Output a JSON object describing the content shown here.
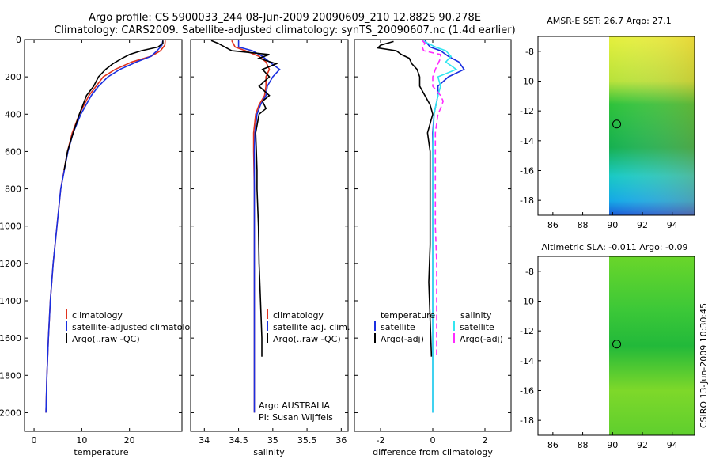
{
  "title_line1": "Argo profile: CS 5900033_244 08-Jun-2009 20090609_210 12.882S 90.278E",
  "title_line2": "Climatology: CARS2009. Satellite-adjusted climatology: synTS_20090607.nc (1.4d earlier)",
  "colors": {
    "clim": "#e0321e",
    "sat": "#1a2fe0",
    "argo": "#000000",
    "sal_diff": "#ff2bff",
    "sal_sat": "#33e6f0"
  },
  "chart_data": [
    {
      "type": "line",
      "name": "temperature-panel",
      "xlabel": "temperature",
      "ylabel": "",
      "xlim": [
        -2,
        31
      ],
      "ylim": [
        2100,
        0
      ],
      "x_ticks": [
        0,
        10,
        20
      ],
      "y_ticks": [
        0,
        200,
        400,
        600,
        800,
        1000,
        1200,
        1400,
        1600,
        1800,
        2000
      ],
      "legend": [
        "climatology",
        "satellite-adjusted climatology",
        "Argo(..raw -QC)"
      ],
      "series": [
        {
          "name": "climatology",
          "color": "clim",
          "depth": [
            5,
            30,
            60,
            90,
            120,
            160,
            200,
            250,
            300,
            400,
            500,
            600,
            800,
            1000,
            1200,
            1400,
            1600,
            1800,
            2000
          ],
          "values": [
            27.5,
            27.4,
            26.5,
            24.5,
            20.5,
            17,
            14.5,
            13,
            11.5,
            9.5,
            8,
            7,
            5.6,
            4.8,
            4.0,
            3.4,
            3.0,
            2.7,
            2.5
          ]
        },
        {
          "name": "satellite-adjusted climatology",
          "color": "sat",
          "depth": [
            5,
            30,
            60,
            90,
            120,
            160,
            200,
            250,
            300,
            400,
            500,
            600,
            800,
            1000,
            1200,
            1400,
            1600,
            1800,
            2000
          ],
          "values": [
            27.0,
            26.8,
            25.8,
            24.5,
            21.5,
            18,
            15.5,
            13.5,
            12,
            9.8,
            8.2,
            7.1,
            5.6,
            4.8,
            4.0,
            3.4,
            3.0,
            2.7,
            2.5
          ]
        },
        {
          "name": "Argo(..raw -QC)",
          "color": "argo",
          "depth": [
            5,
            20,
            40,
            60,
            80,
            100,
            130,
            160,
            200,
            250,
            300,
            400,
            500,
            600,
            700
          ],
          "values": [
            27.0,
            27.0,
            26.0,
            22.5,
            20.0,
            18.5,
            16.5,
            15.0,
            13.5,
            12.5,
            11.0,
            9.5,
            8.2,
            7.0,
            6.3
          ]
        }
      ]
    },
    {
      "type": "line",
      "name": "salinity-panel",
      "xlabel": "salinity",
      "ylabel": "",
      "xlim": [
        33.8,
        36.1
      ],
      "ylim": [
        2100,
        0
      ],
      "x_ticks": [
        34,
        34.5,
        35,
        35.5,
        36
      ],
      "legend": [
        "climatology",
        "satellite adj. clim.",
        "Argo(..raw -QC)"
      ],
      "annotations": [
        "Argo AUSTRALIA",
        "PI: Susan Wijffels"
      ],
      "series": [
        {
          "name": "climatology",
          "color": "clim",
          "depth": [
            5,
            40,
            60,
            90,
            120,
            160,
            200,
            250,
            300,
            350,
            400,
            500,
            600,
            800,
            1000,
            1200,
            1400,
            1600,
            1800,
            2000
          ],
          "values": [
            34.4,
            34.45,
            34.6,
            34.8,
            34.9,
            34.95,
            34.9,
            34.9,
            34.88,
            34.8,
            34.75,
            34.72,
            34.72,
            34.73,
            34.73,
            34.73,
            34.73,
            34.73,
            34.73,
            34.73
          ]
        },
        {
          "name": "satellite adj. clim.",
          "color": "sat",
          "depth": [
            5,
            40,
            60,
            90,
            120,
            160,
            200,
            250,
            300,
            350,
            400,
            500,
            600,
            800,
            1000,
            1200,
            1400,
            1600,
            1800,
            2000
          ],
          "values": [
            34.5,
            34.5,
            34.7,
            34.85,
            34.95,
            35.1,
            35.0,
            34.92,
            34.9,
            34.82,
            34.77,
            34.74,
            34.73,
            34.73,
            34.73,
            34.73,
            34.73,
            34.73,
            34.73,
            34.73
          ]
        },
        {
          "name": "Argo(..raw -QC)",
          "color": "argo",
          "depth": [
            5,
            20,
            40,
            60,
            80,
            100,
            130,
            160,
            200,
            250,
            300,
            330,
            370,
            400,
            500,
            600,
            700,
            800,
            1000,
            1200,
            1400,
            1600,
            1700
          ],
          "values": [
            34.1,
            34.2,
            34.3,
            34.4,
            34.95,
            34.8,
            35.05,
            34.85,
            34.95,
            34.8,
            34.95,
            34.85,
            34.9,
            34.8,
            34.75,
            34.76,
            34.77,
            34.77,
            34.79,
            34.8,
            34.82,
            34.84,
            34.84
          ]
        }
      ]
    },
    {
      "type": "line",
      "name": "difference-panel",
      "xlabel": "difference from climatology",
      "ylabel": "",
      "xlim": [
        -3,
        3
      ],
      "ylim": [
        2100,
        0
      ],
      "x_ticks": [
        -2,
        0,
        2
      ],
      "legend": [
        "temperature",
        "satellite",
        "Argo(-adj)",
        "salinity",
        "satellite",
        "Argo(-adj)"
      ],
      "series": [
        {
          "name": "temperature satellite",
          "color": "sat",
          "depth": [
            5,
            40,
            60,
            90,
            120,
            160,
            200,
            250,
            300,
            400,
            500,
            700,
            1000,
            1500,
            2000
          ],
          "values": [
            -0.3,
            -0.1,
            0.3,
            0.6,
            1.0,
            1.2,
            0.6,
            0.2,
            0.2,
            0.05,
            0.0,
            0.0,
            0.0,
            0.0,
            0.0
          ]
        },
        {
          "name": "temperature Argo(-adj)",
          "color": "argo",
          "depth": [
            10,
            30,
            45,
            60,
            80,
            100,
            130,
            160,
            200,
            250,
            300,
            350,
            400,
            450,
            500,
            600,
            700,
            900,
            1100,
            1300,
            1500,
            1700
          ],
          "values": [
            -1.5,
            -2.0,
            -2.1,
            -1.4,
            -1.2,
            -0.9,
            -0.8,
            -0.6,
            -0.5,
            -0.5,
            -0.3,
            -0.1,
            0.0,
            -0.1,
            -0.2,
            -0.1,
            -0.1,
            -0.1,
            -0.1,
            -0.15,
            -0.1,
            -0.05
          ]
        },
        {
          "name": "salinity satellite",
          "color": "sal_sat",
          "depth": [
            5,
            40,
            60,
            90,
            120,
            160,
            200,
            250,
            300,
            400,
            600,
            1000,
            1500,
            2000
          ],
          "values": [
            -0.4,
            0.1,
            0.5,
            0.7,
            0.5,
            0.9,
            0.2,
            0.3,
            0.2,
            0.05,
            0.0,
            0.0,
            0.0,
            0.0
          ]
        },
        {
          "name": "salinity Argo(-adj)",
          "color": "sal_diff",
          "depth": [
            5,
            20,
            40,
            60,
            80,
            100,
            130,
            160,
            200,
            250,
            300,
            330,
            370,
            400,
            500,
            600,
            800,
            1000,
            1200,
            1400,
            1600,
            1700
          ],
          "values": [
            -0.4,
            -0.3,
            -0.4,
            -0.35,
            0.3,
            0.3,
            0.2,
            0.1,
            0.0,
            0.0,
            0.3,
            0.4,
            0.3,
            0.2,
            0.1,
            0.1,
            0.1,
            0.1,
            0.15,
            0.15,
            0.15,
            0.15
          ]
        }
      ]
    },
    {
      "type": "heatmap",
      "name": "sst-map",
      "title": "AMSR-E SST: 26.7  Argo: 27.1",
      "xlim": [
        85,
        95.5
      ],
      "ylim": [
        -19,
        -7
      ],
      "x_ticks": [
        86,
        88,
        90,
        92,
        94
      ],
      "y_ticks": [
        -8,
        -10,
        -12,
        -14,
        -16,
        -18
      ],
      "data_lon_range": [
        90,
        95.5
      ],
      "marker": {
        "lon": 90.278,
        "lat": -12.882
      }
    },
    {
      "type": "heatmap",
      "name": "sla-map",
      "title": "Altimetric SLA: -0.011  Argo: -0.09",
      "xlim": [
        85,
        95.5
      ],
      "ylim": [
        -19,
        -7
      ],
      "x_ticks": [
        86,
        88,
        90,
        92,
        94
      ],
      "y_ticks": [
        -8,
        -10,
        -12,
        -14,
        -16,
        -18
      ],
      "data_lon_range": [
        90,
        95.5
      ],
      "marker": {
        "lon": 90.278,
        "lat": -12.882
      }
    }
  ],
  "side_label": "CSIRO  13-Jun-2009 10:30:45"
}
